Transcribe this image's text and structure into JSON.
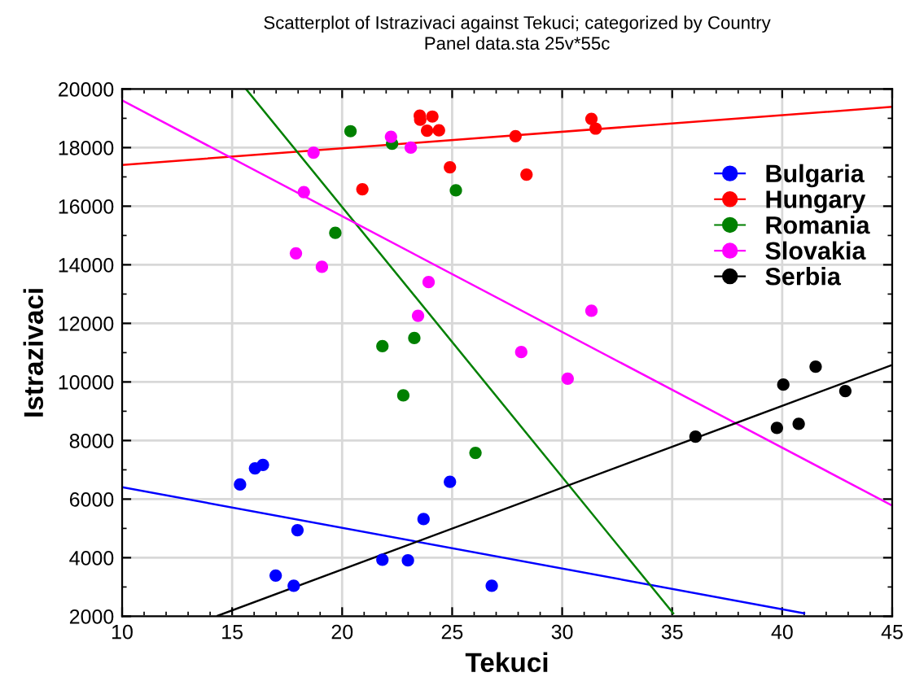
{
  "chart_data": {
    "type": "scatter",
    "title": "Scatterplot of Istrazivaci against Tekuci; categorized by Country",
    "subtitle": "Panel data.sta 25v*55c",
    "xlabel": "Tekuci",
    "ylabel": "Istrazivaci",
    "xlim": [
      10,
      45
    ],
    "xticks": [
      10,
      15,
      20,
      25,
      30,
      35,
      40,
      45
    ],
    "ylim": [
      2000,
      20000
    ],
    "yticks": [
      2000,
      4000,
      6000,
      8000,
      10000,
      12000,
      14000,
      16000,
      18000,
      20000
    ],
    "grid": true,
    "legend": "top right",
    "marker": "circle",
    "series": [
      {
        "name": "Bulgaria",
        "color": "#0000ff",
        "x": [
          15.36,
          16.04,
          16.4,
          17.97,
          16.98,
          17.8,
          21.83,
          22.99,
          23.7,
          24.9,
          26.8
        ],
        "values": [
          6500,
          7050,
          7170,
          4940,
          3390,
          3040,
          3930,
          3910,
          5320,
          6590,
          3040
        ]
      },
      {
        "name": "Hungary",
        "color": "#ff0000",
        "x": [
          23.53,
          23.55,
          24.1,
          23.86,
          24.4,
          24.9,
          20.92,
          27.88,
          31.33,
          31.52,
          28.38
        ],
        "values": [
          19090,
          18950,
          19060,
          18580,
          18590,
          17330,
          16580,
          18390,
          18980,
          18650,
          17080
        ]
      },
      {
        "name": "Romania",
        "color": "#008000",
        "x": [
          20.38,
          22.27,
          25.17,
          19.69,
          21.83,
          23.28,
          22.78,
          26.06
        ],
        "values": [
          18560,
          18130,
          16540,
          15090,
          11220,
          11500,
          9540,
          7580
        ]
      },
      {
        "name": "Slovakia",
        "color": "#ff00ff",
        "x": [
          18.7,
          22.22,
          23.12,
          18.26,
          17.9,
          19.08,
          23.93,
          23.45,
          31.33,
          28.14,
          30.25
        ],
        "values": [
          17830,
          18370,
          18000,
          16480,
          14390,
          13930,
          13410,
          12260,
          12430,
          11020,
          10110
        ]
      },
      {
        "name": "Serbia",
        "color": "#000000",
        "x": [
          36.06,
          39.76,
          40.05,
          40.75,
          41.52,
          42.87
        ],
        "values": [
          8130,
          8430,
          9910,
          8570,
          10520,
          9690
        ]
      },
      {
        "type": "line",
        "marker": "none",
        "color": "#0000ff",
        "x": [
          10,
          41.0
        ],
        "values": [
          6410,
          2100
        ]
      },
      {
        "type": "line",
        "marker": "none",
        "color": "#ff0000",
        "x": [
          10,
          45
        ],
        "values": [
          17410,
          19390
        ]
      },
      {
        "type": "line",
        "marker": "none",
        "color": "#008000",
        "x": [
          15.63,
          35.05
        ],
        "values": [
          20000,
          2100
        ]
      },
      {
        "type": "line",
        "marker": "none",
        "color": "#ff00ff",
        "x": [
          10,
          45
        ],
        "values": [
          19610,
          5780
        ]
      },
      {
        "type": "line",
        "marker": "none",
        "color": "#000000",
        "x": [
          14.35,
          45
        ],
        "values": [
          2020,
          10580
        ]
      }
    ]
  }
}
